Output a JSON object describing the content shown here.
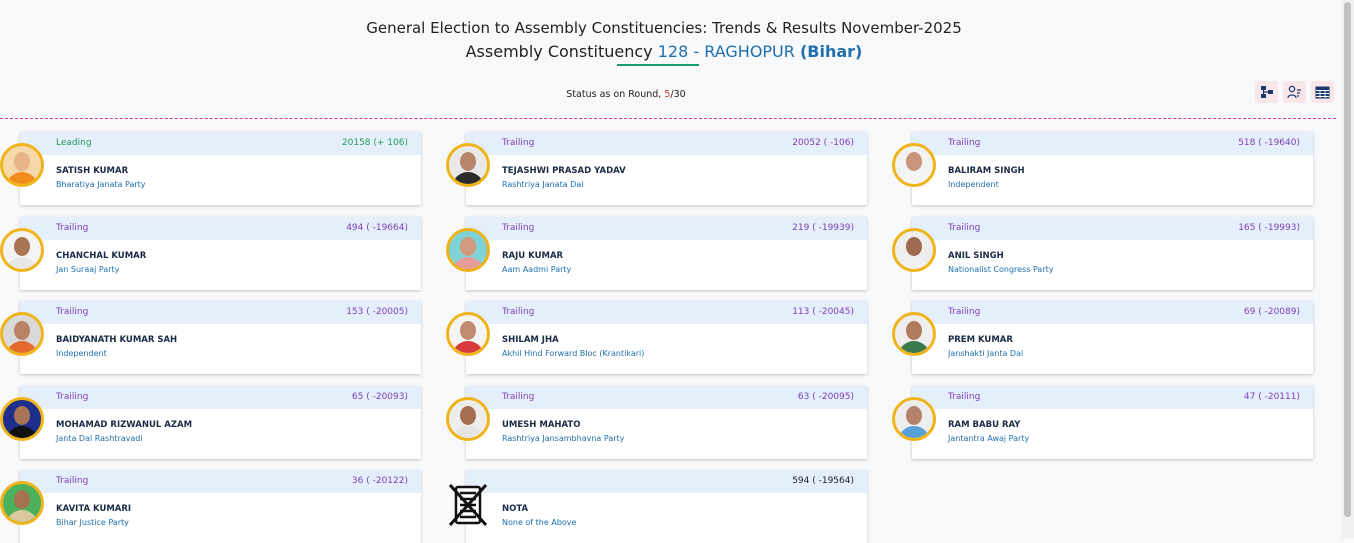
{
  "header": {
    "title_line1": "General Election to Assembly Constituencies: Trends & Results November-2025",
    "title_prefix": "Assembly Constituency",
    "constituency_number": "128",
    "separator": "-",
    "constituency_name": "RAGHOPUR",
    "state": "(Bihar)"
  },
  "status": {
    "label": "Status as on Round,",
    "current_round": "5",
    "total_rounds": "/30"
  },
  "tools": [
    {
      "icon": "sitemap-icon"
    },
    {
      "icon": "user-filter-icon"
    },
    {
      "icon": "table-icon"
    }
  ],
  "candidates": [
    {
      "status": "Leading",
      "votes": "20158 (+ 106)",
      "name": "SATISH KUMAR",
      "party": "Bharatiya Janata Party",
      "colors": {
        "bg": "#f5d9a8",
        "skin": "#e8b48a",
        "shirt": "#f08c1a"
      }
    },
    {
      "status": "Trailing",
      "votes": "20052 ( -106)",
      "name": "TEJASHWI PRASAD YADAV",
      "party": "Rashtriya Janata Dal",
      "colors": {
        "bg": "#e9e9e9",
        "skin": "#b8866a",
        "shirt": "#2b2b2b"
      }
    },
    {
      "status": "Trailing",
      "votes": "518 ( -19640)",
      "name": "BALIRAM SINGH",
      "party": "Independent",
      "colors": {
        "bg": "#f2f2f2",
        "skin": "#c9957a",
        "shirt": "#f5f5f5"
      }
    },
    {
      "status": "Trailing",
      "votes": "494 ( -19664)",
      "name": "CHANCHAL KUMAR",
      "party": "Jan Suraaj Party",
      "colors": {
        "bg": "#f4f4f4",
        "skin": "#a97552",
        "shirt": "#e7e7e7"
      }
    },
    {
      "status": "Trailing",
      "votes": "219 ( -19939)",
      "name": "RAJU KUMAR",
      "party": "Aam Aadmi Party",
      "colors": {
        "bg": "#7fd2d6",
        "skin": "#d49a7e",
        "shirt": "#e89b9b"
      }
    },
    {
      "status": "Trailing",
      "votes": "165 ( -19993)",
      "name": "ANIL SINGH",
      "party": "Nationalist Congress Party",
      "colors": {
        "bg": "#eeeeee",
        "skin": "#9e6b50",
        "shirt": "#f2f2f2"
      }
    },
    {
      "status": "Trailing",
      "votes": "153 ( -20005)",
      "name": "BAIDYANATH KUMAR SAH",
      "party": "Independent",
      "colors": {
        "bg": "#d9d9d9",
        "skin": "#b98266",
        "shirt": "#e36a2a"
      }
    },
    {
      "status": "Trailing",
      "votes": "113 ( -20045)",
      "name": "SHILAM JHA",
      "party": "Akhil Hind Forward Bloc (Krantikari)",
      "colors": {
        "bg": "#f5f5f5",
        "skin": "#c08c70",
        "shirt": "#d63a3a"
      }
    },
    {
      "status": "Trailing",
      "votes": "69 ( -20089)",
      "name": "PREM KUMAR",
      "party": "Janshakti Janta Dal",
      "colors": {
        "bg": "#eeeeee",
        "skin": "#b07a5c",
        "shirt": "#3a7a4a"
      }
    },
    {
      "status": "Trailing",
      "votes": "65 ( -20093)",
      "name": "MOHAMAD RIZWANUL AZAM",
      "party": "Janta Dal Rashtravadi",
      "colors": {
        "bg": "#1d2f8a",
        "skin": "#a87456",
        "shirt": "#111111"
      }
    },
    {
      "status": "Trailing",
      "votes": "63 ( -20095)",
      "name": "UMESH MAHATO",
      "party": "Rashtriya Jansambhavna Party",
      "colors": {
        "bg": "#eeeeee",
        "skin": "#a46e50",
        "shirt": "#e6e6e6"
      }
    },
    {
      "status": "Trailing",
      "votes": "47 ( -20111)",
      "name": "RAM BABU RAY",
      "party": "Jantantra Awaj Party",
      "colors": {
        "bg": "#eeeeee",
        "skin": "#b4826a",
        "shirt": "#5aa0d8"
      }
    },
    {
      "status": "Trailing",
      "votes": "36 ( -20122)",
      "name": "KAVITA KUMARI",
      "party": "Bihar Justice Party",
      "colors": {
        "bg": "#4cb05c",
        "skin": "#a5734f",
        "shirt": "#d9c9a0"
      }
    },
    {
      "status": "",
      "votes": "594 ( -19564)",
      "name": "NOTA",
      "party": "None of the Above",
      "colors": {
        "bg": "#ffffff",
        "skin": "#ffffff",
        "shirt": "#ffffff"
      }
    }
  ]
}
